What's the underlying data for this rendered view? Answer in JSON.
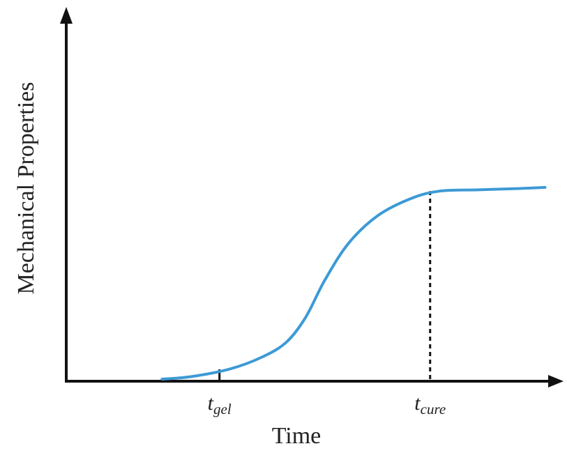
{
  "chart_data": {
    "type": "line",
    "title": "",
    "xlabel": "Time",
    "ylabel": "Mechanical Properties",
    "xlim": [
      0,
      10
    ],
    "ylim": [
      0,
      10
    ],
    "grid": false,
    "legend": "none",
    "series": [
      {
        "color": "#3d9ad6",
        "x": [
          2.0,
          2.6,
          3.4,
          4.1,
          4.6,
          5.0,
          5.4,
          5.9,
          6.5,
          7.2,
          7.8,
          8.6,
          9.4,
          10.0
        ],
        "y": [
          0.0,
          0.1,
          0.4,
          0.9,
          1.5,
          2.5,
          4.0,
          5.5,
          6.6,
          7.3,
          7.6,
          7.65,
          7.7,
          7.75
        ]
      }
    ],
    "markers": [
      {
        "main": "t",
        "sub": "gel",
        "x": 3.2
      },
      {
        "main": "t",
        "sub": "cure",
        "x": 7.6,
        "dashed_to_y": 7.6
      }
    ]
  }
}
